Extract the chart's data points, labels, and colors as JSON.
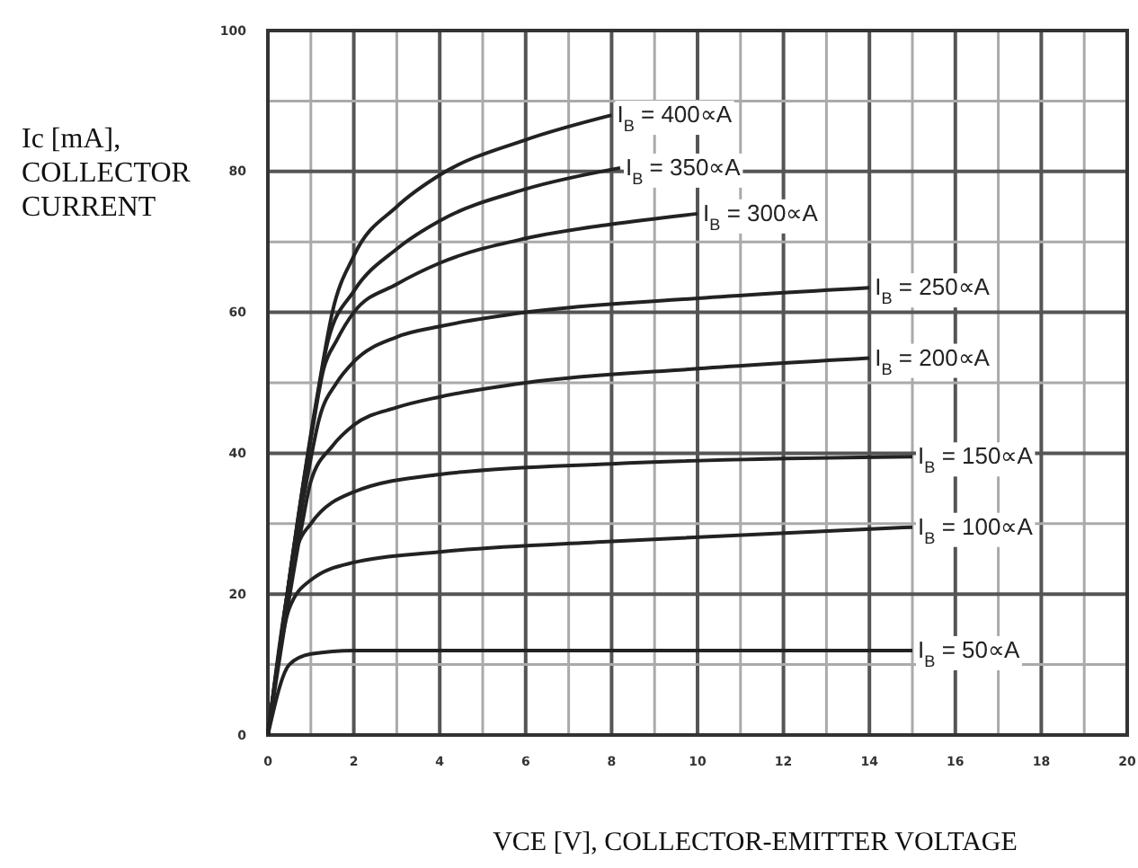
{
  "chart_data": {
    "type": "line",
    "xlabel": "VCE [V], COLLECTOR-EMITTER VOLTAGE",
    "ylabel": "Ic [mA], COLLECTOR CURRENT",
    "xlim": [
      0,
      20
    ],
    "ylim": [
      0,
      100
    ],
    "xticks": [
      0,
      {
        "value": 1,
        "label": null
      },
      2,
      {
        "value": 3,
        "label": null
      },
      4,
      {
        "value": 5,
        "label": null
      },
      6,
      {
        "value": 7,
        "label": null
      },
      8,
      {
        "value": 9,
        "label": null
      },
      10,
      {
        "value": 11,
        "label": null
      },
      12,
      {
        "value": 13,
        "label": null
      },
      14,
      {
        "value": 15,
        "label": null
      },
      16,
      {
        "value": 17,
        "label": null
      },
      18,
      {
        "value": 19,
        "label": null
      },
      20
    ],
    "yticks": [
      0,
      {
        "value": 10,
        "label": null
      },
      20,
      {
        "value": 30,
        "label": null
      },
      40,
      {
        "value": 50,
        "label": null
      },
      60,
      {
        "value": 70,
        "label": null
      },
      80,
      {
        "value": 90,
        "label": null
      },
      100
    ],
    "grid": true,
    "marker": "none",
    "line_style": "solid",
    "series": [
      {
        "name": "I$_{B}$ = 400∝A",
        "color": "#222222",
        "x": [
          0,
          1.2,
          1.5,
          2,
          3,
          4,
          6,
          8
        ],
        "values": [
          0,
          50,
          60,
          68,
          75,
          79.5,
          84.5,
          88
        ]
      },
      {
        "name": "I$_{B}$ = 350∝A",
        "color": "#222222",
        "x": [
          0,
          1.1,
          1.4,
          2,
          3,
          4,
          6,
          8.2
        ],
        "values": [
          0,
          46,
          56,
          63,
          69,
          73,
          77.5,
          80.5
        ]
      },
      {
        "name": "I$_{B}$ = 300∝A",
        "color": "#222222",
        "x": [
          0,
          1,
          1.3,
          1.6,
          2,
          3,
          4,
          6,
          8,
          10
        ],
        "values": [
          0,
          42,
          52,
          56,
          60,
          64,
          67,
          70.5,
          72.5,
          74
        ]
      },
      {
        "name": "I$_{B}$ = 250∝A",
        "color": "#222222",
        "x": [
          0,
          0.9,
          1.2,
          1.6,
          2,
          3,
          4,
          6,
          10,
          14
        ],
        "values": [
          0,
          36,
          45,
          50,
          53,
          56.5,
          58,
          60,
          62,
          63.5
        ]
      },
      {
        "name": "I$_{B}$ = 200∝A",
        "color": "#222222",
        "x": [
          0,
          0.8,
          1,
          1.5,
          2,
          3,
          4,
          6,
          10,
          14
        ],
        "values": [
          0,
          30,
          36,
          41,
          44,
          46.5,
          48,
          50,
          52,
          53.5
        ]
      },
      {
        "name": "I$_{B}$ = 150∝A",
        "color": "#222222",
        "x": [
          0,
          0.7,
          1,
          2,
          4,
          8,
          15
        ],
        "values": [
          0,
          27,
          30,
          34.5,
          37,
          38.5,
          39.5
        ]
      },
      {
        "name": "I$_{B}$ = 100∝A",
        "color": "#222222",
        "x": [
          0,
          0.5,
          1,
          2,
          4,
          8,
          15
        ],
        "values": [
          0,
          18,
          22,
          24.5,
          26,
          27.5,
          29.5
        ]
      },
      {
        "name": "I$_{B}$ = 50∝A",
        "color": "#222222",
        "x": [
          0,
          0.5,
          1,
          2,
          15
        ],
        "values": [
          0,
          10,
          11.5,
          12,
          12
        ]
      }
    ]
  }
}
